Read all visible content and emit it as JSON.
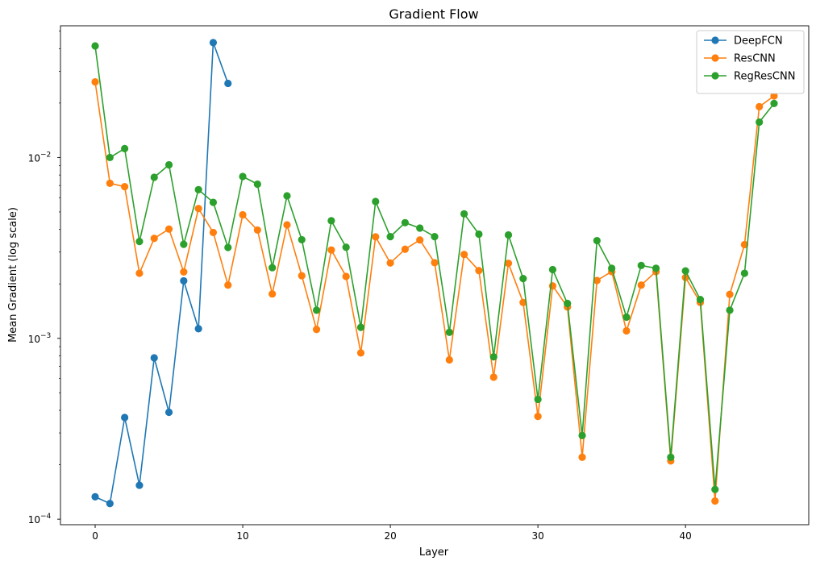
{
  "chart_data": {
    "type": "line",
    "title": "Gradient Flow",
    "xlabel": "Layer",
    "ylabel": "Mean Gradient (log scale)",
    "xlim": [
      -2.35,
      48.35
    ],
    "ylim": [
      9.32e-05,
      0.0535
    ],
    "yscale": "log",
    "grid": false,
    "legend_position": "top-right",
    "x_ticks": [
      0,
      10,
      20,
      30,
      40
    ],
    "y_ticks": [
      {
        "value": 0.0001,
        "base": "10",
        "exponent": "−4"
      },
      {
        "value": 0.001,
        "base": "10",
        "exponent": "−3"
      },
      {
        "value": 0.01,
        "base": "10",
        "exponent": "−2"
      }
    ],
    "series": [
      {
        "name": "DeepFCN",
        "color": "#1f77b4",
        "x": [
          0,
          1,
          2,
          3,
          4,
          5,
          6,
          7,
          8,
          9
        ],
        "values": [
          0.000133,
          0.000122,
          0.000365,
          0.000154,
          0.00078,
          0.00039,
          0.00208,
          0.00113,
          0.0432,
          0.0257
        ]
      },
      {
        "name": "ResCNN",
        "color": "#ff7f0e",
        "x": [
          0,
          1,
          2,
          3,
          4,
          5,
          6,
          7,
          8,
          9,
          10,
          11,
          12,
          13,
          14,
          15,
          16,
          17,
          18,
          19,
          20,
          21,
          22,
          23,
          24,
          25,
          26,
          27,
          28,
          29,
          30,
          31,
          32,
          33,
          34,
          35,
          36,
          37,
          38,
          39,
          40,
          41,
          42,
          43,
          44,
          45,
          46
        ],
        "values": [
          0.0262,
          0.0072,
          0.0069,
          0.00229,
          0.00357,
          0.00402,
          0.00233,
          0.00522,
          0.00385,
          0.00197,
          0.00482,
          0.00397,
          0.00176,
          0.00424,
          0.00222,
          0.00112,
          0.00308,
          0.0022,
          0.00083,
          0.00364,
          0.00261,
          0.00311,
          0.0035,
          0.00262,
          0.00076,
          0.00291,
          0.00237,
          0.00061,
          0.0026,
          0.00158,
          0.00037,
          0.00195,
          0.00149,
          0.00022,
          0.00209,
          0.00234,
          0.0011,
          0.00197,
          0.00234,
          0.00021,
          0.00217,
          0.00158,
          0.000126,
          0.00175,
          0.0033,
          0.0191,
          0.0219
        ]
      },
      {
        "name": "RegResCNN",
        "color": "#2ca02c",
        "x": [
          0,
          1,
          2,
          3,
          4,
          5,
          6,
          7,
          8,
          9,
          10,
          11,
          12,
          13,
          14,
          15,
          16,
          17,
          18,
          19,
          20,
          21,
          22,
          23,
          24,
          25,
          26,
          27,
          28,
          29,
          30,
          31,
          32,
          33,
          34,
          35,
          36,
          37,
          38,
          39,
          40,
          41,
          42,
          43,
          44,
          45,
          46
        ],
        "values": [
          0.0414,
          0.01,
          0.0112,
          0.00343,
          0.00777,
          0.00911,
          0.00331,
          0.00664,
          0.00565,
          0.00318,
          0.00785,
          0.00712,
          0.00246,
          0.00614,
          0.00351,
          0.00143,
          0.00447,
          0.00319,
          0.00115,
          0.00571,
          0.00365,
          0.00436,
          0.00407,
          0.00365,
          0.00108,
          0.00488,
          0.00377,
          0.00079,
          0.00373,
          0.00214,
          0.00046,
          0.0024,
          0.00156,
          0.00029,
          0.00347,
          0.00244,
          0.00131,
          0.00253,
          0.00244,
          0.00022,
          0.00236,
          0.00164,
          0.000146,
          0.00143,
          0.00229,
          0.0157,
          0.0199
        ]
      }
    ]
  }
}
